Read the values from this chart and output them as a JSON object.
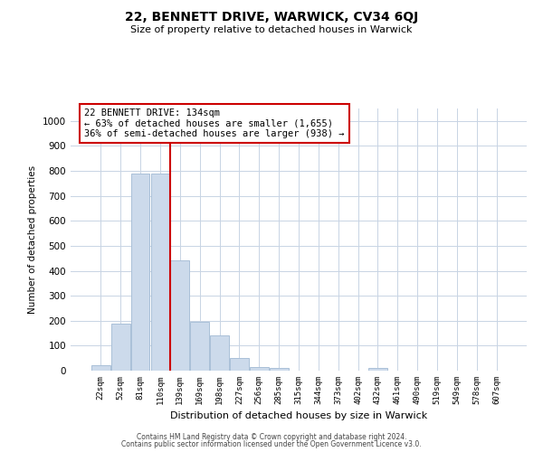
{
  "title_line1": "22, BENNETT DRIVE, WARWICK, CV34 6QJ",
  "title_line2": "Size of property relative to detached houses in Warwick",
  "xlabel": "Distribution of detached houses by size in Warwick",
  "ylabel": "Number of detached properties",
  "bar_labels": [
    "22sqm",
    "52sqm",
    "81sqm",
    "110sqm",
    "139sqm",
    "169sqm",
    "198sqm",
    "227sqm",
    "256sqm",
    "285sqm",
    "315sqm",
    "344sqm",
    "373sqm",
    "402sqm",
    "432sqm",
    "461sqm",
    "490sqm",
    "519sqm",
    "549sqm",
    "578sqm",
    "607sqm"
  ],
  "bar_values": [
    20,
    190,
    790,
    790,
    440,
    195,
    140,
    50,
    15,
    10,
    0,
    0,
    0,
    0,
    10,
    0,
    0,
    0,
    0,
    0,
    0
  ],
  "bar_color": "#ccdaeb",
  "bar_edgecolor": "#aac0d8",
  "property_line_index": 4,
  "property_line_color": "#cc0000",
  "annotation_line1": "22 BENNETT DRIVE: 134sqm",
  "annotation_line2": "← 63% of detached houses are smaller (1,655)",
  "annotation_line3": "36% of semi-detached houses are larger (938) →",
  "annotation_box_color": "#cc0000",
  "ylim_max": 1050,
  "yticks": [
    0,
    100,
    200,
    300,
    400,
    500,
    600,
    700,
    800,
    900,
    1000
  ],
  "footer_line1": "Contains HM Land Registry data © Crown copyright and database right 2024.",
  "footer_line2": "Contains public sector information licensed under the Open Government Licence v3.0.",
  "bg_color": "#ffffff",
  "grid_color": "#c8d4e4"
}
